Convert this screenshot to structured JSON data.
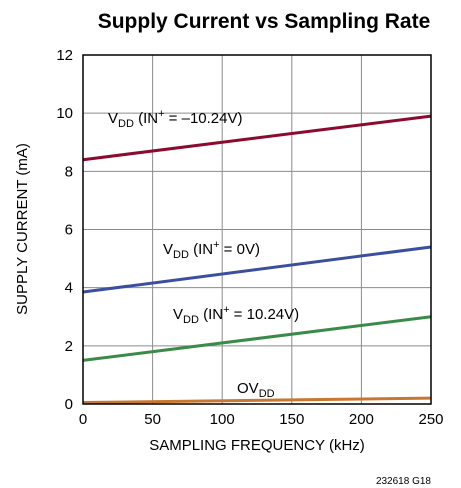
{
  "chart_data": {
    "type": "line",
    "title": "Supply Current vs Sampling Rate",
    "xlabel": "SAMPLING FREQUENCY (kHz)",
    "ylabel": "SUPPLY CURRENT (mA)",
    "xlim": [
      0,
      250
    ],
    "ylim": [
      0,
      12
    ],
    "xticks": [
      0,
      50,
      100,
      150,
      200,
      250
    ],
    "yticks": [
      0,
      2,
      4,
      6,
      8,
      10,
      12
    ],
    "grid": true,
    "series": [
      {
        "label_main": "V",
        "label_sub": "DD",
        "label_rest": " (IN",
        "label_sup": "+",
        "label_end": " = –10.24V)",
        "color": "#8b0a2e",
        "x": [
          0,
          250
        ],
        "y": [
          8.4,
          9.9
        ]
      },
      {
        "label_main": "V",
        "label_sub": "DD",
        "label_rest": " (IN",
        "label_sup": "+",
        "label_end": " = 0V)",
        "color": "#3a4fa0",
        "x": [
          0,
          250
        ],
        "y": [
          3.85,
          5.4
        ]
      },
      {
        "label_main": "V",
        "label_sub": "DD",
        "label_rest": " (IN",
        "label_sup": "+",
        "label_end": " = 10.24V)",
        "color": "#3a8a4a",
        "x": [
          0,
          250
        ],
        "y": [
          1.5,
          3.0
        ]
      },
      {
        "label_main": "OV",
        "label_sub": "DD",
        "label_rest": "",
        "label_sup": "",
        "label_end": "",
        "color": "#c8782e",
        "x": [
          0,
          250
        ],
        "y": [
          0.05,
          0.2
        ]
      }
    ],
    "annotation": "232618 G18"
  }
}
